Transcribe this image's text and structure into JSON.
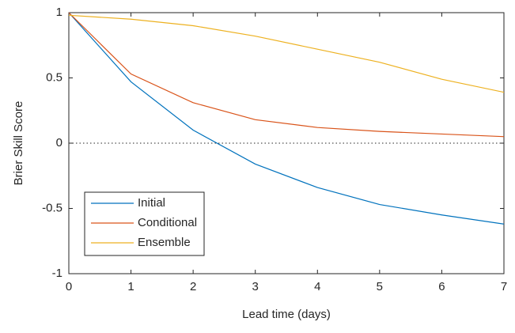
{
  "chart_data": {
    "type": "line",
    "xlabel": "Lead time (days)",
    "ylabel": "Brier Skill Score",
    "x": [
      0,
      1,
      2,
      3,
      4,
      5,
      6,
      7
    ],
    "series": [
      {
        "name": "Initial",
        "color": "#0072bd",
        "values": [
          1,
          0.47,
          0.1,
          -0.16,
          -0.34,
          -0.47,
          -0.55,
          -0.62
        ]
      },
      {
        "name": "Conditional",
        "color": "#d95319",
        "values": [
          1,
          0.53,
          0.31,
          0.18,
          0.12,
          0.09,
          0.07,
          0.05
        ]
      },
      {
        "name": "Ensemble",
        "color": "#edb120",
        "values": [
          0.98,
          0.95,
          0.9,
          0.82,
          0.72,
          0.62,
          0.49,
          0.39
        ]
      }
    ],
    "xlim": [
      0,
      7
    ],
    "xticks": [
      0,
      1,
      2,
      3,
      4,
      5,
      6,
      7
    ],
    "ylim": [
      -1,
      1
    ],
    "yticks": [
      1,
      0.5,
      0,
      -0.5,
      -1
    ],
    "reference_line": 0,
    "legend": "lower left",
    "grid": false
  }
}
